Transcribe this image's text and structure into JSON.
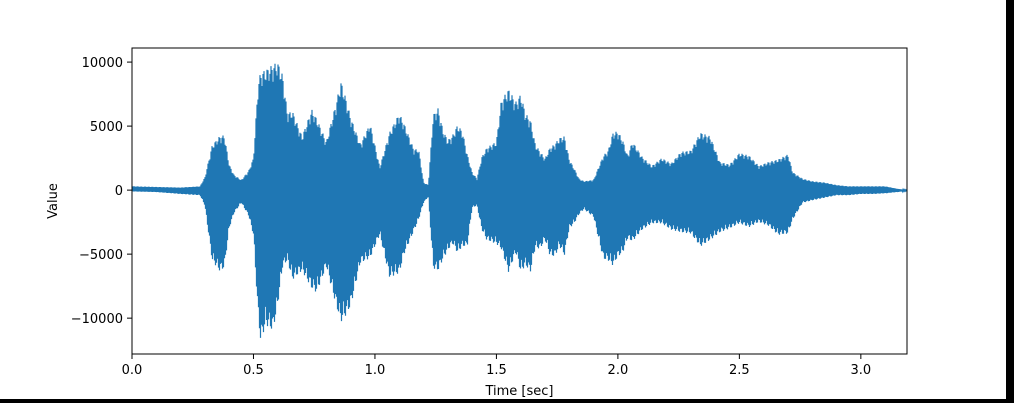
{
  "chart_data": {
    "type": "line",
    "title": "",
    "xlabel": "Time [sec]",
    "ylabel": "Value",
    "xlim": [
      0,
      3.19
    ],
    "ylim": [
      -12800,
      11100
    ],
    "grid": false,
    "legend": null,
    "series_color": "#1f77b4",
    "x_ticks": [
      {
        "value": 0.0,
        "label": "0.0"
      },
      {
        "value": 0.5,
        "label": "0.5"
      },
      {
        "value": 1.0,
        "label": "1.0"
      },
      {
        "value": 1.5,
        "label": "1.5"
      },
      {
        "value": 2.0,
        "label": "2.0"
      },
      {
        "value": 2.5,
        "label": "2.5"
      },
      {
        "value": 3.0,
        "label": "3.0"
      }
    ],
    "y_ticks": [
      {
        "value": 10000,
        "label": "10000"
      },
      {
        "value": 5000,
        "label": "5000"
      },
      {
        "value": 0,
        "label": "0"
      },
      {
        "value": -5000,
        "label": "−5000"
      },
      {
        "value": -10000,
        "label": "−10000"
      }
    ],
    "envelope": {
      "x": [
        0.0,
        0.1,
        0.2,
        0.28,
        0.3,
        0.33,
        0.36,
        0.38,
        0.4,
        0.42,
        0.45,
        0.48,
        0.5,
        0.52,
        0.53,
        0.55,
        0.58,
        0.6,
        0.62,
        0.64,
        0.66,
        0.7,
        0.74,
        0.76,
        0.8,
        0.84,
        0.86,
        0.88,
        0.9,
        0.94,
        0.98,
        1.02,
        1.06,
        1.1,
        1.12,
        1.16,
        1.18,
        1.2,
        1.22,
        1.24,
        1.26,
        1.28,
        1.3,
        1.32,
        1.34,
        1.36,
        1.38,
        1.4,
        1.42,
        1.44,
        1.46,
        1.5,
        1.52,
        1.55,
        1.58,
        1.6,
        1.62,
        1.64,
        1.66,
        1.68,
        1.7,
        1.72,
        1.74,
        1.76,
        1.78,
        1.8,
        1.82,
        1.84,
        1.86,
        1.9,
        1.94,
        1.96,
        1.98,
        2.0,
        2.02,
        2.04,
        2.06,
        2.1,
        2.14,
        2.18,
        2.22,
        2.26,
        2.3,
        2.34,
        2.38,
        2.42,
        2.46,
        2.5,
        2.54,
        2.58,
        2.62,
        2.66,
        2.7,
        2.72,
        2.76,
        2.8,
        2.85,
        2.9,
        2.95,
        3.0,
        3.05,
        3.1,
        3.15,
        3.19
      ],
      "upper": [
        300,
        250,
        200,
        300,
        1000,
        3500,
        4200,
        4300,
        2000,
        1200,
        800,
        1500,
        2500,
        8500,
        9200,
        9400,
        9800,
        10000,
        9000,
        6000,
        6200,
        4200,
        6300,
        5600,
        3800,
        6800,
        8500,
        7200,
        5700,
        3600,
        5200,
        1800,
        4500,
        6000,
        5200,
        3200,
        3200,
        600,
        400,
        5900,
        6400,
        4700,
        3900,
        4300,
        5100,
        4600,
        2800,
        1400,
        900,
        2600,
        3300,
        3800,
        7000,
        7900,
        6900,
        7500,
        6000,
        5500,
        3600,
        3000,
        2500,
        3300,
        3600,
        4100,
        4200,
        2400,
        1700,
        900,
        700,
        800,
        2700,
        3100,
        4500,
        4600,
        3900,
        2700,
        3800,
        2600,
        1900,
        2500,
        2100,
        3000,
        3100,
        4500,
        4200,
        2200,
        2000,
        2900,
        2700,
        1900,
        2200,
        2400,
        2800,
        1400,
        900,
        700,
        600,
        400,
        300,
        300,
        300,
        300,
        100,
        0
      ],
      "lower": [
        -100,
        -150,
        -300,
        -400,
        -1200,
        -5500,
        -6300,
        -6100,
        -3000,
        -1800,
        -1000,
        -2000,
        -3500,
        -10000,
        -11900,
        -10500,
        -11000,
        -9000,
        -6000,
        -5500,
        -7000,
        -6300,
        -7700,
        -8000,
        -6000,
        -9000,
        -10300,
        -9800,
        -9100,
        -5700,
        -5300,
        -3500,
        -6800,
        -6500,
        -5000,
        -3200,
        -2300,
        -1000,
        -500,
        -6100,
        -6300,
        -5400,
        -4700,
        -4200,
        -4900,
        -4400,
        -4400,
        -1400,
        -1200,
        -3100,
        -3900,
        -4200,
        -4600,
        -6400,
        -4900,
        -6400,
        -5900,
        -6400,
        -4500,
        -4600,
        -3900,
        -5100,
        -5200,
        -4400,
        -5100,
        -3000,
        -2600,
        -1900,
        -1500,
        -2100,
        -5400,
        -5500,
        -5900,
        -5200,
        -4900,
        -3800,
        -4000,
        -3100,
        -2600,
        -2600,
        -3100,
        -3300,
        -3400,
        -4400,
        -3900,
        -3300,
        -3000,
        -2600,
        -2900,
        -2500,
        -2800,
        -3500,
        -3400,
        -2300,
        -1000,
        -800,
        -600,
        -400,
        -400,
        -300,
        -300,
        -250,
        -150,
        -50
      ]
    }
  }
}
